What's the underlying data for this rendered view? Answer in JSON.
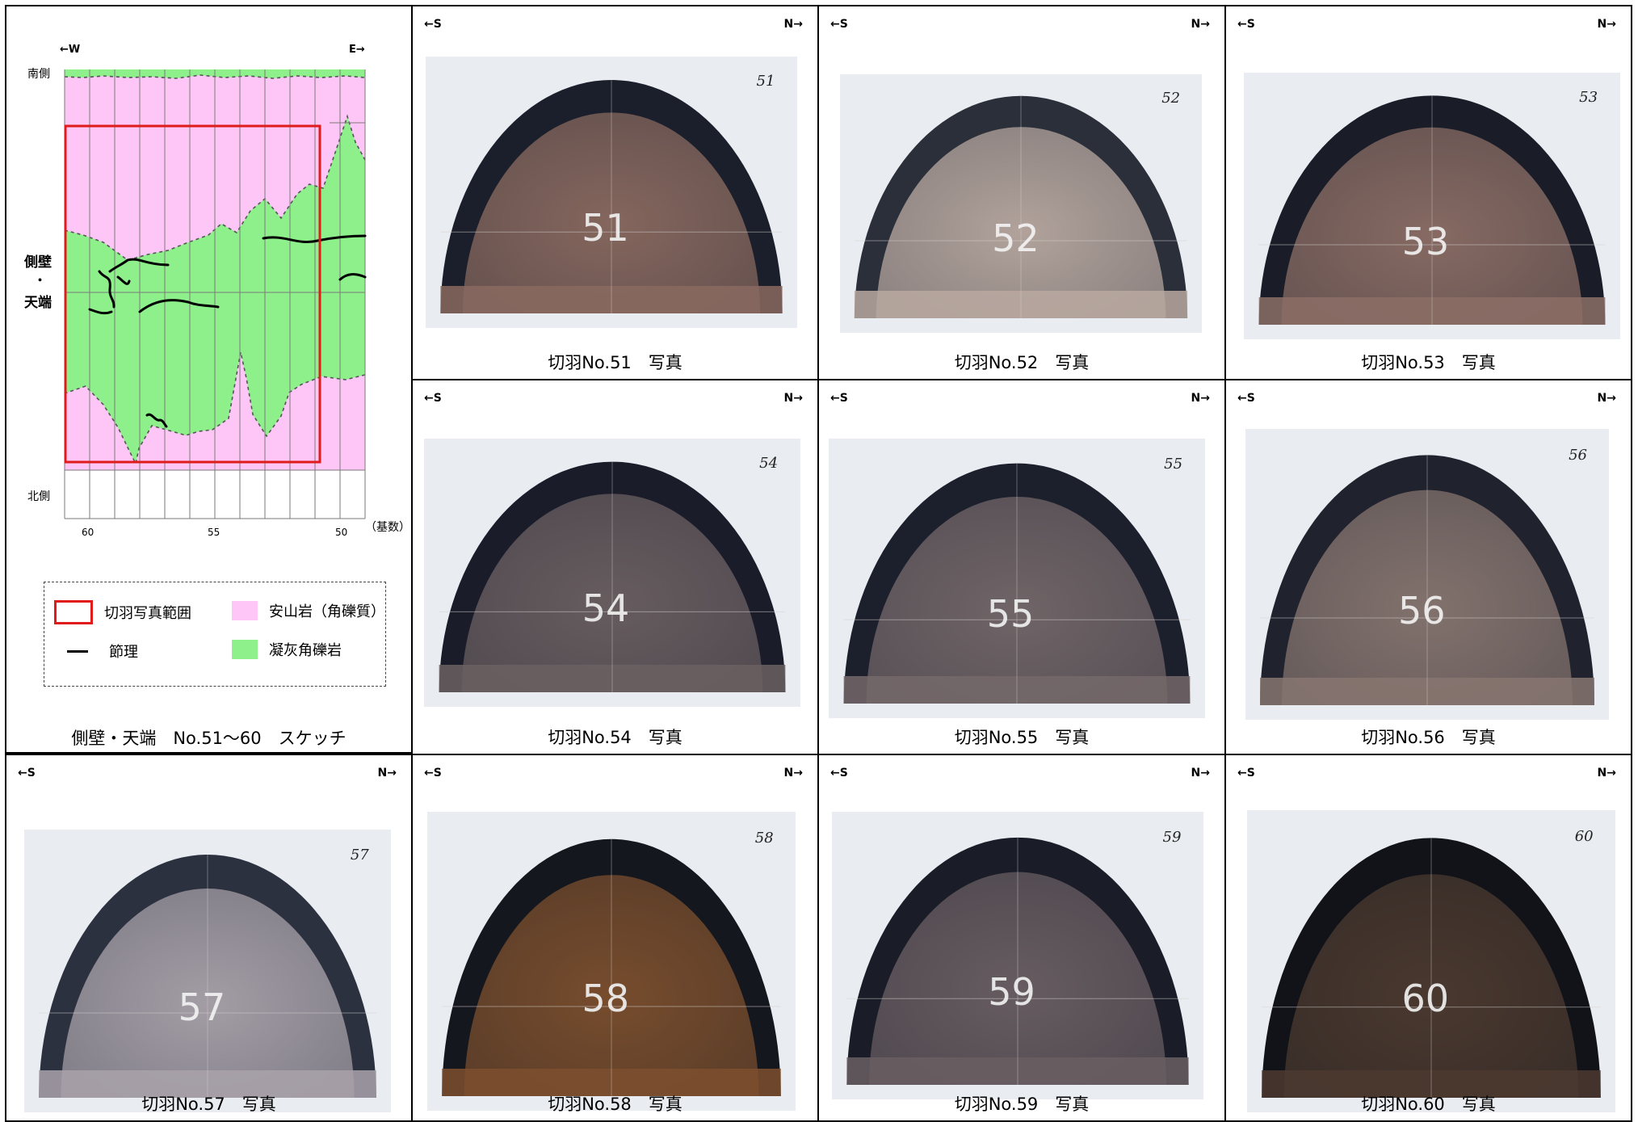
{
  "sketch": {
    "west_label": "←W",
    "east_label": "E→",
    "south_side": "南側",
    "north_side": "北側",
    "side_label_top": "側壁",
    "side_label_mid": "・",
    "side_label_bottom": "天端",
    "ticks": [
      "60",
      "55",
      "50"
    ],
    "unit_label": "（基数）",
    "legend": {
      "photo_range": "切羽写真範囲",
      "joint": "節理",
      "andesite": "安山岩（角礫質）",
      "tuff_breccia": "凝灰角礫岩"
    },
    "caption": "側壁・天端　No.51～60　スケッチ",
    "colors": {
      "andesite": "#fdc6f7",
      "tuff_breccia": "#8df08b",
      "photo_range": "#e01b1b"
    }
  },
  "direction": {
    "south": "←S",
    "north": "N→"
  },
  "photos": [
    {
      "caption": "切羽No.51　写真",
      "number": "51"
    },
    {
      "caption": "切羽No.52　写真",
      "number": "52"
    },
    {
      "caption": "切羽No.53　写真",
      "number": "53"
    },
    {
      "caption": "切羽No.54　写真",
      "number": "54"
    },
    {
      "caption": "切羽No.55　写真",
      "number": "55"
    },
    {
      "caption": "切羽No.56　写真",
      "number": "56"
    },
    {
      "caption": "切羽No.57　写真",
      "number": "57"
    },
    {
      "caption": "切羽No.58　写真",
      "number": "58"
    },
    {
      "caption": "切羽No.59　写真",
      "number": "59"
    },
    {
      "caption": "切羽No.60　写真",
      "number": "60"
    }
  ]
}
